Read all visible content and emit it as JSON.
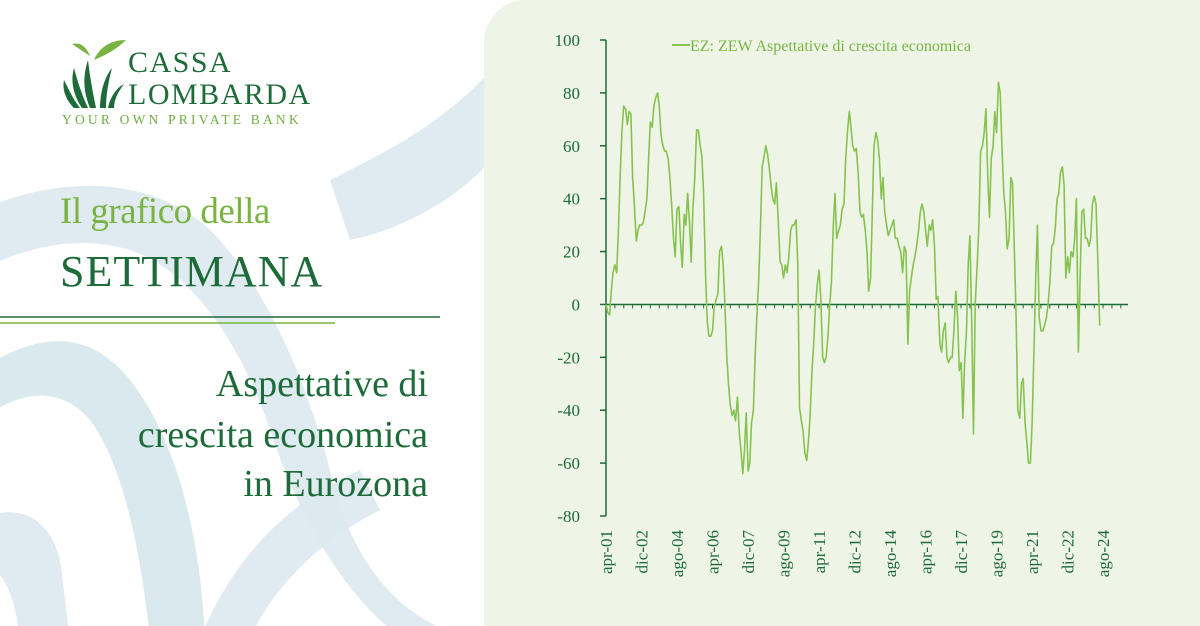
{
  "brand": {
    "name_line1": "CASSA",
    "name_line2": "LOMBARDA",
    "tagline": "YOUR OWN PRIVATE BANK"
  },
  "heading": {
    "light": "Il grafico della",
    "bold": "SETTIMANA"
  },
  "subtitle": {
    "line1": "Aspettative di",
    "line2": "crescita economica",
    "line3": "in Eurozona"
  },
  "colors": {
    "brand_green": "#1e6b3a",
    "accent_green": "#79b443",
    "panel_bg": "#eef5e6",
    "series_line": "#86c24f"
  },
  "chart_data": {
    "type": "line",
    "legend": "EZ: ZEW Aspettative di crescita economica",
    "legend_position": "top-right",
    "ylim": [
      -80,
      100
    ],
    "yticks": [
      -80,
      -60,
      -40,
      -20,
      0,
      20,
      40,
      60,
      80,
      100
    ],
    "xlim": [
      2001.25,
      2025.75
    ],
    "xtick_labels": [
      "apr-01",
      "dic-02",
      "ago-04",
      "apr-06",
      "dic-07",
      "ago-09",
      "apr-11",
      "dic-12",
      "ago-14",
      "apr-16",
      "dic-17",
      "ago-19",
      "apr-21",
      "dic-22",
      "ago-24"
    ],
    "xtick_positions": [
      2001.25,
      2002.917,
      2004.583,
      2006.25,
      2007.917,
      2009.583,
      2011.25,
      2012.917,
      2014.583,
      2016.25,
      2017.917,
      2019.583,
      2021.25,
      2022.917,
      2024.583
    ],
    "grid": false,
    "series": [
      {
        "points": [
          [
            2001.25,
            0
          ],
          [
            2001.33,
            -3
          ],
          [
            2001.42,
            -4
          ],
          [
            2001.5,
            5
          ],
          [
            2001.58,
            12
          ],
          [
            2001.67,
            15
          ],
          [
            2001.75,
            12
          ],
          [
            2001.83,
            28
          ],
          [
            2001.92,
            50
          ],
          [
            2002.0,
            66
          ],
          [
            2002.08,
            75
          ],
          [
            2002.17,
            74
          ],
          [
            2002.25,
            68
          ],
          [
            2002.33,
            73
          ],
          [
            2002.42,
            72
          ],
          [
            2002.5,
            48
          ],
          [
            2002.58,
            38
          ],
          [
            2002.67,
            24
          ],
          [
            2002.75,
            28
          ],
          [
            2002.83,
            30
          ],
          [
            2002.92,
            30
          ],
          [
            2003.0,
            31
          ],
          [
            2003.08,
            35
          ],
          [
            2003.17,
            40
          ],
          [
            2003.25,
            55
          ],
          [
            2003.33,
            69
          ],
          [
            2003.42,
            67
          ],
          [
            2003.5,
            75
          ],
          [
            2003.58,
            78
          ],
          [
            2003.67,
            80
          ],
          [
            2003.75,
            75
          ],
          [
            2003.83,
            64
          ],
          [
            2003.92,
            60
          ],
          [
            2004.0,
            58
          ],
          [
            2004.08,
            58
          ],
          [
            2004.17,
            55
          ],
          [
            2004.25,
            48
          ],
          [
            2004.33,
            38
          ],
          [
            2004.42,
            25
          ],
          [
            2004.5,
            18
          ],
          [
            2004.58,
            36
          ],
          [
            2004.67,
            37
          ],
          [
            2004.75,
            23
          ],
          [
            2004.83,
            14
          ],
          [
            2004.92,
            34
          ],
          [
            2005.0,
            30
          ],
          [
            2005.08,
            42
          ],
          [
            2005.17,
            31
          ],
          [
            2005.25,
            16
          ],
          [
            2005.33,
            36
          ],
          [
            2005.42,
            48
          ],
          [
            2005.5,
            66
          ],
          [
            2005.58,
            66
          ],
          [
            2005.67,
            60
          ],
          [
            2005.75,
            56
          ],
          [
            2005.83,
            42
          ],
          [
            2005.92,
            12
          ],
          [
            2006.0,
            -6
          ],
          [
            2006.08,
            -12
          ],
          [
            2006.17,
            -12
          ],
          [
            2006.25,
            -10
          ],
          [
            2006.33,
            -1
          ],
          [
            2006.42,
            2
          ],
          [
            2006.5,
            4
          ],
          [
            2006.58,
            20
          ],
          [
            2006.67,
            22
          ],
          [
            2006.75,
            15
          ],
          [
            2006.83,
            0
          ],
          [
            2006.92,
            -20
          ],
          [
            2007.0,
            -30
          ],
          [
            2007.08,
            -38
          ],
          [
            2007.17,
            -42
          ],
          [
            2007.25,
            -40
          ],
          [
            2007.33,
            -44
          ],
          [
            2007.42,
            -35
          ],
          [
            2007.5,
            -48
          ],
          [
            2007.58,
            -55
          ],
          [
            2007.67,
            -64
          ],
          [
            2007.75,
            -55
          ],
          [
            2007.83,
            -41
          ],
          [
            2007.92,
            -63
          ],
          [
            2008.0,
            -60
          ],
          [
            2008.08,
            -45
          ],
          [
            2008.17,
            -40
          ],
          [
            2008.25,
            -20
          ],
          [
            2008.33,
            -5
          ],
          [
            2008.42,
            10
          ],
          [
            2008.5,
            30
          ],
          [
            2008.58,
            52
          ],
          [
            2008.67,
            56
          ],
          [
            2008.75,
            60
          ],
          [
            2008.83,
            57
          ],
          [
            2008.92,
            51
          ],
          [
            2009.0,
            45
          ],
          [
            2009.08,
            40
          ],
          [
            2009.17,
            38
          ],
          [
            2009.25,
            46
          ],
          [
            2009.33,
            32
          ],
          [
            2009.42,
            16
          ],
          [
            2009.5,
            15
          ],
          [
            2009.58,
            10
          ],
          [
            2009.67,
            15
          ],
          [
            2009.75,
            12
          ],
          [
            2009.83,
            18
          ],
          [
            2009.92,
            28
          ],
          [
            2010.0,
            30
          ],
          [
            2010.08,
            30
          ],
          [
            2010.17,
            32
          ],
          [
            2010.25,
            15
          ],
          [
            2010.33,
            -39
          ],
          [
            2010.42,
            -44
          ],
          [
            2010.5,
            -48
          ],
          [
            2010.58,
            -56
          ],
          [
            2010.67,
            -59
          ],
          [
            2010.75,
            -52
          ],
          [
            2010.83,
            -42
          ],
          [
            2010.92,
            -25
          ],
          [
            2011.0,
            -15
          ],
          [
            2011.08,
            -1
          ],
          [
            2011.17,
            8
          ],
          [
            2011.25,
            13
          ],
          [
            2011.33,
            2
          ],
          [
            2011.42,
            -20
          ],
          [
            2011.5,
            -22
          ],
          [
            2011.58,
            -20
          ],
          [
            2011.67,
            -12
          ],
          [
            2011.75,
            0
          ],
          [
            2011.83,
            8
          ],
          [
            2011.92,
            30
          ],
          [
            2012.0,
            42
          ],
          [
            2012.08,
            25
          ],
          [
            2012.17,
            28
          ],
          [
            2012.25,
            30
          ],
          [
            2012.33,
            36
          ],
          [
            2012.42,
            38
          ],
          [
            2012.5,
            55
          ],
          [
            2012.58,
            65
          ],
          [
            2012.67,
            73
          ],
          [
            2012.75,
            67
          ],
          [
            2012.83,
            60
          ],
          [
            2012.92,
            58
          ],
          [
            2013.0,
            59
          ],
          [
            2013.08,
            50
          ],
          [
            2013.17,
            35
          ],
          [
            2013.25,
            33
          ],
          [
            2013.33,
            34
          ],
          [
            2013.42,
            28
          ],
          [
            2013.5,
            20
          ],
          [
            2013.58,
            5
          ],
          [
            2013.67,
            10
          ],
          [
            2013.75,
            35
          ],
          [
            2013.83,
            60
          ],
          [
            2013.92,
            65
          ],
          [
            2014.0,
            62
          ],
          [
            2014.08,
            55
          ],
          [
            2014.17,
            40
          ],
          [
            2014.25,
            48
          ],
          [
            2014.33,
            35
          ],
          [
            2014.42,
            30
          ],
          [
            2014.5,
            26
          ],
          [
            2014.58,
            28
          ],
          [
            2014.67,
            30
          ],
          [
            2014.75,
            32
          ],
          [
            2014.83,
            25
          ],
          [
            2014.92,
            25
          ],
          [
            2015.0,
            22
          ],
          [
            2015.08,
            20
          ],
          [
            2015.17,
            12
          ],
          [
            2015.25,
            22
          ],
          [
            2015.33,
            20
          ],
          [
            2015.42,
            -15
          ],
          [
            2015.5,
            5
          ],
          [
            2015.58,
            10
          ],
          [
            2015.67,
            15
          ],
          [
            2015.75,
            18
          ],
          [
            2015.83,
            22
          ],
          [
            2015.92,
            28
          ],
          [
            2016.0,
            35
          ],
          [
            2016.08,
            38
          ],
          [
            2016.17,
            35
          ],
          [
            2016.25,
            28
          ],
          [
            2016.33,
            22
          ],
          [
            2016.42,
            30
          ],
          [
            2016.5,
            28
          ],
          [
            2016.58,
            32
          ],
          [
            2016.67,
            22
          ],
          [
            2016.75,
            2
          ],
          [
            2016.83,
            3
          ],
          [
            2016.92,
            -15
          ],
          [
            2017.0,
            -18
          ],
          [
            2017.08,
            -10
          ],
          [
            2017.17,
            -7
          ],
          [
            2017.25,
            -20
          ],
          [
            2017.33,
            -22
          ],
          [
            2017.42,
            -20
          ],
          [
            2017.5,
            -20
          ],
          [
            2017.58,
            -10
          ],
          [
            2017.67,
            5
          ],
          [
            2017.75,
            -5
          ],
          [
            2017.83,
            -25
          ],
          [
            2017.92,
            -22
          ],
          [
            2018.0,
            -43
          ],
          [
            2018.08,
            -22
          ],
          [
            2018.17,
            -10
          ],
          [
            2018.25,
            15
          ],
          [
            2018.33,
            26
          ],
          [
            2018.42,
            -8
          ],
          [
            2018.5,
            -49
          ],
          [
            2018.58,
            0
          ],
          [
            2018.67,
            15
          ],
          [
            2018.75,
            30
          ],
          [
            2018.83,
            58
          ],
          [
            2018.92,
            60
          ],
          [
            2019.0,
            65
          ],
          [
            2019.08,
            74
          ],
          [
            2019.17,
            48
          ],
          [
            2019.25,
            33
          ],
          [
            2019.33,
            55
          ],
          [
            2019.42,
            60
          ],
          [
            2019.5,
            73
          ],
          [
            2019.58,
            65
          ],
          [
            2019.67,
            84
          ],
          [
            2019.75,
            80
          ],
          [
            2019.83,
            60
          ],
          [
            2019.92,
            42
          ],
          [
            2020.0,
            35
          ],
          [
            2020.08,
            21
          ],
          [
            2020.17,
            25
          ],
          [
            2020.25,
            48
          ],
          [
            2020.33,
            46
          ],
          [
            2020.42,
            20
          ],
          [
            2020.5,
            -5
          ],
          [
            2020.58,
            -40
          ],
          [
            2020.67,
            -43
          ],
          [
            2020.75,
            -30
          ],
          [
            2020.83,
            -28
          ],
          [
            2020.92,
            -45
          ],
          [
            2021.0,
            -52
          ],
          [
            2021.08,
            -60
          ],
          [
            2021.17,
            -60
          ],
          [
            2021.25,
            -45
          ],
          [
            2021.33,
            -20
          ],
          [
            2021.42,
            10
          ],
          [
            2021.5,
            30
          ],
          [
            2021.58,
            -5
          ],
          [
            2021.67,
            -10
          ],
          [
            2021.75,
            -10
          ],
          [
            2021.83,
            -8
          ],
          [
            2021.92,
            -5
          ],
          [
            2022.0,
            0
          ],
          [
            2022.08,
            8
          ],
          [
            2022.17,
            22
          ],
          [
            2022.25,
            23
          ],
          [
            2022.33,
            28
          ],
          [
            2022.42,
            40
          ],
          [
            2022.5,
            42
          ],
          [
            2022.58,
            50
          ],
          [
            2022.67,
            52
          ],
          [
            2022.75,
            45
          ],
          [
            2022.83,
            10
          ],
          [
            2022.92,
            18
          ],
          [
            2023.0,
            12
          ],
          [
            2023.08,
            20
          ],
          [
            2023.17,
            18
          ],
          [
            2023.25,
            25
          ],
          [
            2023.33,
            40
          ],
          [
            2023.42,
            -18
          ],
          [
            2023.5,
            10
          ],
          [
            2023.58,
            35
          ],
          [
            2023.67,
            36
          ],
          [
            2023.75,
            25
          ],
          [
            2023.83,
            25
          ],
          [
            2023.92,
            22
          ],
          [
            2024.0,
            25
          ],
          [
            2024.08,
            38
          ],
          [
            2024.17,
            41
          ],
          [
            2024.25,
            38
          ],
          [
            2024.33,
            18
          ],
          [
            2024.42,
            -8
          ]
        ]
      }
    ]
  }
}
